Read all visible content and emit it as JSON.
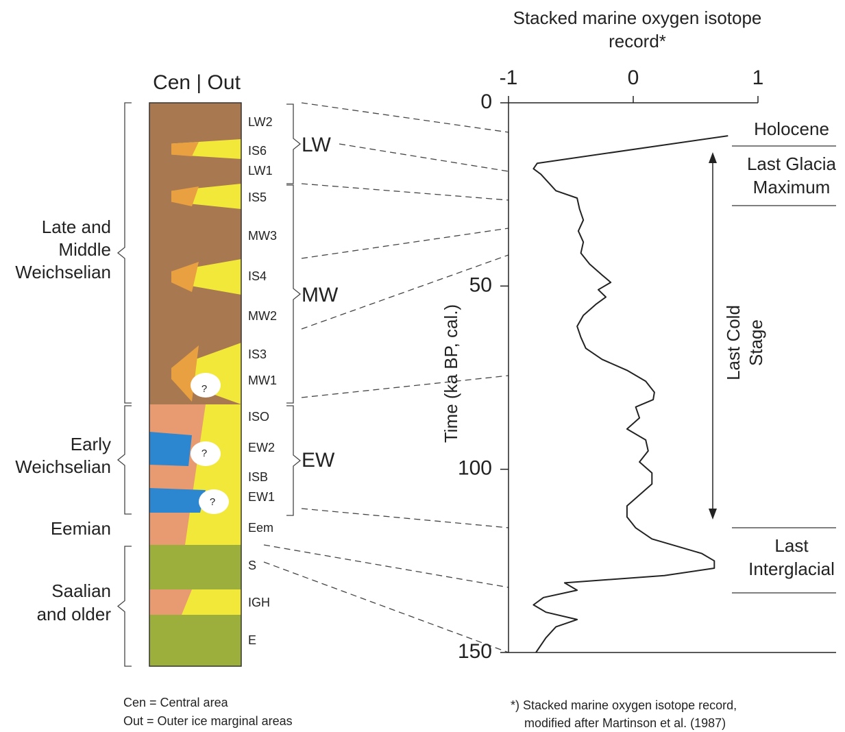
{
  "chart_data": {
    "type": "line",
    "title": "Stacked marine oxygen isotope record*",
    "y_label": "Time (ka BP, cal.)",
    "xlim": [
      0,
      150
    ],
    "xticks": [
      0,
      50,
      100,
      150
    ],
    "ylim": [
      -1,
      1
    ],
    "yticks": [
      -1,
      0,
      1
    ],
    "series": [
      {
        "color": "#222222",
        "x": [
          9,
          16.5,
          18,
          19.5,
          21,
          24,
          26,
          29,
          32,
          35,
          38,
          41,
          44,
          47,
          49,
          51,
          53,
          55,
          58,
          61,
          64,
          67,
          70,
          73,
          76,
          79,
          81,
          83,
          86,
          89,
          92,
          95,
          98,
          101,
          104,
          107,
          110,
          113,
          116,
          119,
          121,
          123,
          125,
          127,
          129,
          131,
          133,
          135,
          137,
          139,
          141,
          143,
          146,
          150
        ],
        "values": [
          0.76,
          -0.77,
          -0.8,
          -0.74,
          -0.7,
          -0.62,
          -0.45,
          -0.43,
          -0.4,
          -0.44,
          -0.4,
          -0.42,
          -0.35,
          -0.25,
          -0.18,
          -0.28,
          -0.22,
          -0.3,
          -0.4,
          -0.45,
          -0.42,
          -0.38,
          -0.25,
          -0.05,
          0.1,
          0.17,
          0.16,
          0.02,
          0.05,
          -0.05,
          0.1,
          0.12,
          0.05,
          0.15,
          0.15,
          0.05,
          -0.05,
          -0.05,
          0.02,
          0.15,
          0.35,
          0.55,
          0.65,
          0.65,
          0.25,
          -0.55,
          -0.45,
          -0.72,
          -0.8,
          -0.7,
          -0.45,
          -0.62,
          -0.7,
          -0.78
        ]
      }
    ],
    "stages": [
      [
        "Holocene"
      ],
      [
        "Last Glacia",
        "Maximum"
      ],
      [
        "Last",
        "Interglacial"
      ]
    ],
    "cold_stage": [
      "Last Cold",
      "Stage"
    ],
    "footnote": [
      "*) Stacked marine oxygen isotope record,",
      "modified after Martinson et al. (1987)"
    ]
  },
  "column": {
    "header": "Cen | Out",
    "units": [
      "LW2",
      "IS6",
      "LW1",
      "IS5",
      "MW3",
      "IS4",
      "MW2",
      "IS3",
      "MW1",
      "ISO",
      "EW2",
      "ISB",
      "EW1",
      "Eem",
      "S",
      "IGH",
      "E"
    ],
    "groups": [
      "LW",
      "MW",
      "EW"
    ],
    "periods": [
      [
        "Late and",
        "Middle",
        "Weichselian"
      ],
      [
        "Early",
        "Weichselian"
      ],
      [
        "Eemian"
      ],
      [
        "Saalian",
        "and older"
      ]
    ],
    "unknown": "?",
    "legend": [
      "Cen = Central area",
      "Out = Outer ice marginal areas"
    ]
  }
}
